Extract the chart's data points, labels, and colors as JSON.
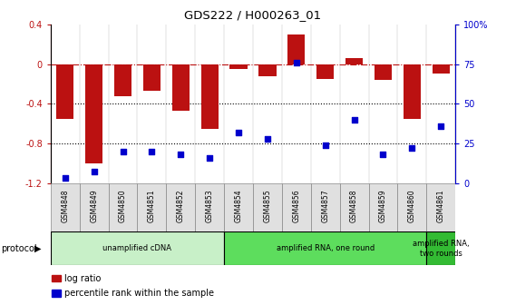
{
  "title": "GDS222 / H000263_01",
  "samples": [
    "GSM4848",
    "GSM4849",
    "GSM4850",
    "GSM4851",
    "GSM4852",
    "GSM4853",
    "GSM4854",
    "GSM4855",
    "GSM4856",
    "GSM4857",
    "GSM4858",
    "GSM4859",
    "GSM4860",
    "GSM4861"
  ],
  "log_ratio": [
    -0.55,
    -1.0,
    -0.32,
    -0.27,
    -0.47,
    -0.65,
    -0.05,
    -0.12,
    0.3,
    -0.15,
    0.06,
    -0.16,
    -0.55,
    -0.1
  ],
  "percentile": [
    3,
    7,
    20,
    20,
    18,
    16,
    32,
    28,
    76,
    24,
    40,
    18,
    22,
    36
  ],
  "protocol_groups": [
    {
      "label": "unamplified cDNA",
      "start": 0,
      "end": 5,
      "color": "#c8f0c8"
    },
    {
      "label": "amplified RNA, one round",
      "start": 6,
      "end": 12,
      "color": "#5ddd5d"
    },
    {
      "label": "amplified RNA,\ntwo rounds",
      "start": 13,
      "end": 13,
      "color": "#33bb33"
    }
  ],
  "bar_color": "#bb1111",
  "dot_color": "#0000cc",
  "ylim_left": [
    -1.2,
    0.4
  ],
  "ylim_right": [
    0,
    100
  ],
  "yticks_left": [
    -1.2,
    -0.8,
    -0.4,
    0.0,
    0.4
  ],
  "ytick_labels_left": [
    "-1.2",
    "-0.8",
    "-0.4",
    "0",
    "0.4"
  ],
  "yticks_right": [
    0,
    25,
    50,
    75,
    100
  ],
  "ytick_labels_right": [
    "0",
    "25",
    "50",
    "75",
    "100%"
  ],
  "hline_y": 0.0,
  "dotted_lines": [
    -0.4,
    -0.8
  ],
  "background_color": "#ffffff",
  "label_bgcolor": "#e0e0e0"
}
